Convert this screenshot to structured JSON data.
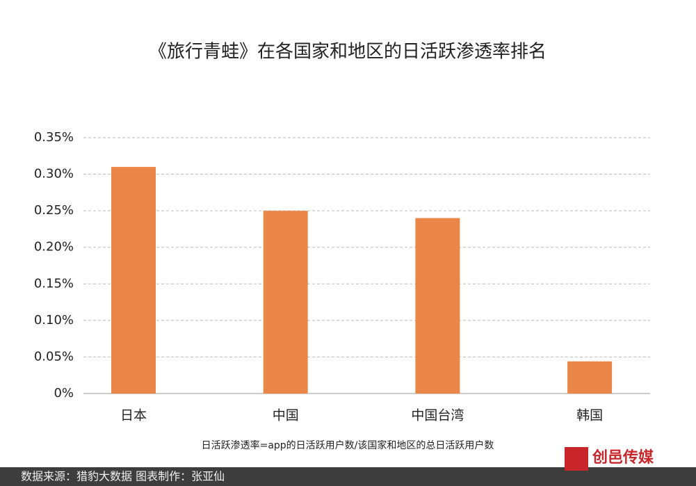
{
  "chart_data": {
    "type": "bar",
    "title": "《旅行青蛙》在各国家和地区的日活跃渗透率排名",
    "categories": [
      "日本",
      "中国",
      "中国台湾",
      "韩国"
    ],
    "values": [
      0.31,
      0.25,
      0.24,
      0.044
    ],
    "color": "#ea8748",
    "ylim": [
      0,
      0.35
    ],
    "yticks": [
      {
        "value": 0,
        "label": "0%"
      },
      {
        "value": 0.05,
        "label": "0.05%"
      },
      {
        "value": 0.1,
        "label": "0.10%"
      },
      {
        "value": 0.15,
        "label": "0.15%"
      },
      {
        "value": 0.2,
        "label": "0.20%"
      },
      {
        "value": 0.25,
        "label": "0.25%"
      },
      {
        "value": 0.3,
        "label": "0.30%"
      },
      {
        "value": 0.35,
        "label": "0.35%"
      }
    ],
    "grid": true,
    "note": "日活跃渗透率=app的日活跃用户数/该国家和地区的总日活跃用户数",
    "source": "数据来源：猎豹大数据  图表制作：张亚仙",
    "logo": "创邑传媒"
  }
}
